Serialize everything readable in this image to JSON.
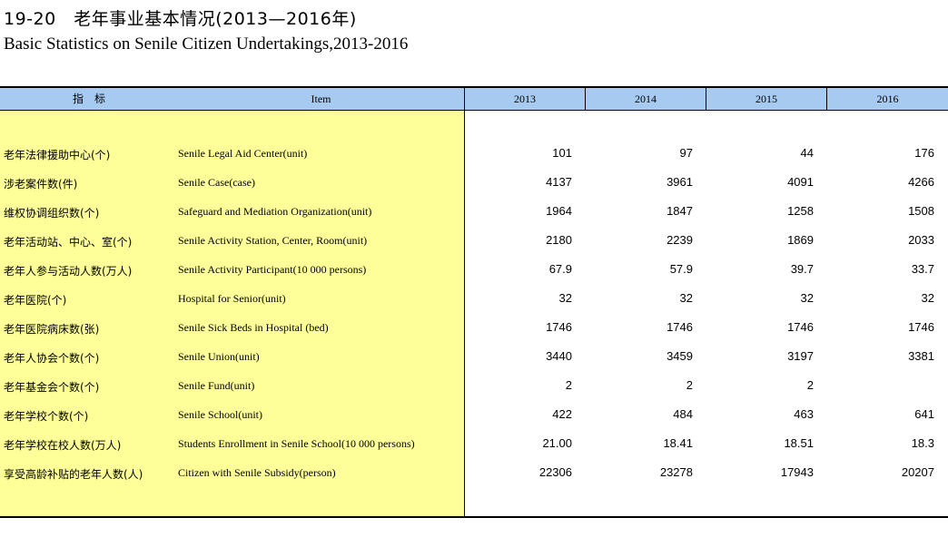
{
  "title": {
    "cn": "19-20　老年事业基本情况(2013—2016年)",
    "en": "Basic Statistics on Senile Citizen Undertakings,2013-2016"
  },
  "header": {
    "indicator": "指　标",
    "item": "Item",
    "years": [
      "2013",
      "2014",
      "2015",
      "2016"
    ]
  },
  "rows": [
    {
      "cn": "老年法律援助中心(个)",
      "en": "Senile Legal Aid Center(unit)",
      "values": [
        "101",
        "97",
        "44",
        "176"
      ]
    },
    {
      "cn": "涉老案件数(件)",
      "en": "Senile Case(case)",
      "values": [
        "4137",
        "3961",
        "4091",
        "4266"
      ]
    },
    {
      "cn": "维权协调组织数(个)",
      "en": "Safeguard and Mediation Organization(unit)",
      "values": [
        "1964",
        "1847",
        "1258",
        "1508"
      ]
    },
    {
      "cn": "老年活动站、中心、室(个)",
      "en": "Senile Activity Station, Center, Room(unit)",
      "values": [
        "2180",
        "2239",
        "1869",
        "2033"
      ]
    },
    {
      "cn": "老年人参与活动人数(万人)",
      "en": "Senile Activity Participant(10 000 persons)",
      "values": [
        "67.9",
        "57.9",
        "39.7",
        "33.7"
      ]
    },
    {
      "cn": "老年医院(个)",
      "en": "Hospital for Senior(unit)",
      "values": [
        "32",
        "32",
        "32",
        "32"
      ]
    },
    {
      "cn": "老年医院病床数(张)",
      "en": "Senile Sick Beds in Hospital (bed)",
      "values": [
        "1746",
        "1746",
        "1746",
        "1746"
      ]
    },
    {
      "cn": "老年人协会个数(个)",
      "en": "Senile Union(unit)",
      "values": [
        "3440",
        "3459",
        "3197",
        "3381"
      ]
    },
    {
      "cn": "老年基金会个数(个)",
      "en": "Senile Fund(unit)",
      "values": [
        "2",
        "2",
        "2",
        ""
      ]
    },
    {
      "cn": "老年学校个数(个)",
      "en": "Senile School(unit)",
      "values": [
        "422",
        "484",
        "463",
        "641"
      ]
    },
    {
      "cn": "老年学校在校人数(万人)",
      "en": "Students Enrollment in Senile School(10 000 persons)",
      "values": [
        "21.00",
        "18.41",
        "18.51",
        "18.3"
      ]
    },
    {
      "cn": "享受高龄补贴的老年人数(人)",
      "en": "Citizen with Senile Subsidy(person)",
      "values": [
        "22306",
        "23278",
        "17943",
        "20207"
      ]
    }
  ]
}
